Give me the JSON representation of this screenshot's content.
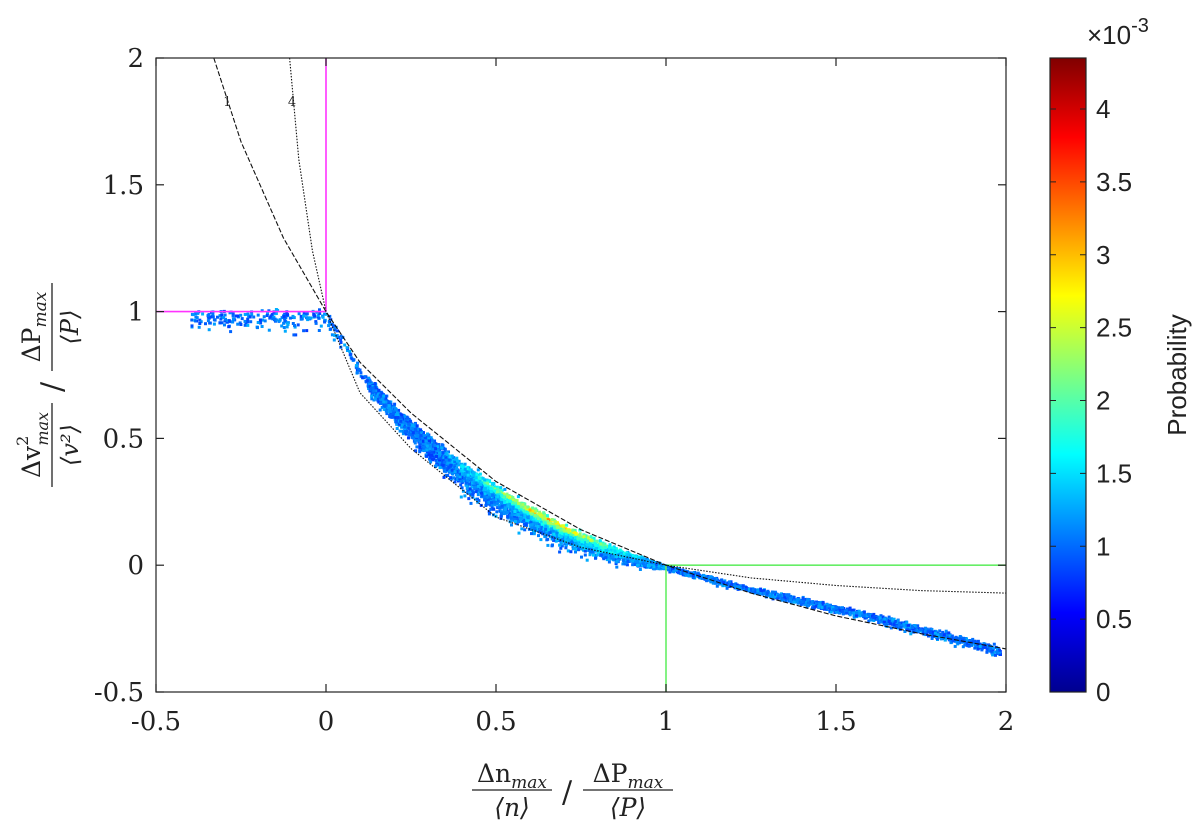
{
  "chart_data": {
    "type": "heatmap",
    "title": "",
    "xlim": [
      -0.5,
      2
    ],
    "ylim": [
      -0.5,
      2
    ],
    "x_ticks": [
      -0.5,
      0,
      0.5,
      1,
      1.5,
      2
    ],
    "x_tick_labels": [
      "-0.5",
      "0",
      "0.5",
      "1",
      "1.5",
      "2"
    ],
    "y_ticks": [
      -0.5,
      0,
      0.5,
      1,
      1.5,
      2
    ],
    "y_tick_labels": [
      "-0.5",
      "0",
      "0.5",
      "1",
      "1.5",
      "2"
    ],
    "xlabel": {
      "left_num_base": "Δn",
      "left_num_sub": "max",
      "left_den": "⟨n⟩",
      "slash": "/",
      "right_num_base": "ΔP",
      "right_num_sub": "max",
      "right_den": "⟨P⟩"
    },
    "ylabel": {
      "left_num_base": "Δv",
      "left_num_sup": "2",
      "left_num_sub": "max",
      "left_den": "⟨v²⟩",
      "slash": "/",
      "right_num_base": "ΔP",
      "right_num_sub": "max",
      "right_den": "⟨P⟩"
    },
    "grid": false,
    "reference_lines": [
      {
        "orientation": "vertical",
        "x": 0,
        "y_from": 1,
        "y_to": 2,
        "color": "#ff33ff"
      },
      {
        "orientation": "horizontal",
        "y": 1,
        "x_from": -0.5,
        "x_to": 0,
        "color": "#ff33ff"
      },
      {
        "orientation": "vertical",
        "x": 1,
        "y_from": -0.5,
        "y_to": 0,
        "color": "#66ee66"
      },
      {
        "orientation": "horizontal",
        "y": 0,
        "x_from": 1,
        "x_to": 2,
        "color": "#66ee66"
      }
    ],
    "curves": [
      {
        "label": "1",
        "exponent": 1,
        "style": "dashed",
        "points": [
          [
            -0.33,
            2.0
          ],
          [
            -0.25,
            1.67
          ],
          [
            -0.125,
            1.29
          ],
          [
            0,
            1.0
          ],
          [
            0.1,
            0.8
          ],
          [
            0.25,
            0.6
          ],
          [
            0.5,
            0.33
          ],
          [
            0.75,
            0.14
          ],
          [
            1.0,
            0.0
          ],
          [
            1.25,
            -0.11
          ],
          [
            1.5,
            -0.2
          ],
          [
            1.75,
            -0.27
          ],
          [
            2.0,
            -0.33
          ]
        ]
      },
      {
        "label": "4",
        "exponent": 4,
        "style": "dotted",
        "points": [
          [
            -0.107,
            2.0
          ],
          [
            -0.08,
            1.6
          ],
          [
            -0.04,
            1.24
          ],
          [
            0,
            1.0
          ],
          [
            0.1,
            0.68
          ],
          [
            0.25,
            0.46
          ],
          [
            0.5,
            0.19
          ],
          [
            0.75,
            0.07
          ],
          [
            1.0,
            0.0
          ],
          [
            1.25,
            -0.05
          ],
          [
            1.5,
            -0.08
          ],
          [
            1.75,
            -0.1
          ],
          [
            2.0,
            -0.11
          ]
        ]
      }
    ],
    "curve_label_positions": [
      {
        "label": "1",
        "x": -0.29,
        "y": 1.81
      },
      {
        "label": "4",
        "x": -0.1,
        "y": 1.81
      }
    ],
    "density_band": {
      "description_points": [
        [
          0.0,
          1.0
        ],
        [
          0.1,
          0.77
        ],
        [
          0.2,
          0.62
        ],
        [
          0.3,
          0.5
        ],
        [
          0.4,
          0.39
        ],
        [
          0.5,
          0.3
        ],
        [
          0.6,
          0.22
        ],
        [
          0.7,
          0.15
        ],
        [
          0.8,
          0.09
        ],
        [
          0.9,
          0.04
        ],
        [
          1.0,
          0.0
        ],
        [
          1.2,
          -0.07
        ],
        [
          1.4,
          -0.13
        ],
        [
          1.6,
          -0.19
        ],
        [
          1.8,
          -0.26
        ],
        [
          2.0,
          -0.33
        ]
      ],
      "peak_x": 0.65
    },
    "colorbar": {
      "label": "Probability",
      "multiplier": "×10",
      "multiplier_exponent": "-3",
      "range": [
        0,
        4.35
      ],
      "ticks": [
        0,
        0.5,
        1,
        1.5,
        2,
        2.5,
        3,
        3.5,
        4
      ],
      "tick_labels": [
        "0",
        "0.5",
        "1",
        "1.5",
        "2",
        "2.5",
        "3",
        "3.5",
        "4"
      ],
      "colormap": "jet"
    }
  }
}
